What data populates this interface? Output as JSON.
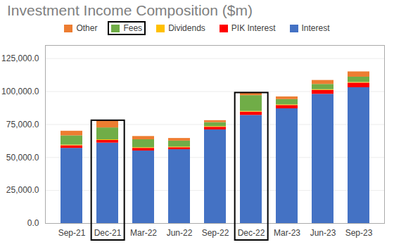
{
  "chart_data": {
    "type": "bar",
    "stacked": true,
    "title": "Investment Income Composition ($m)",
    "categories": [
      "Sep-21",
      "Dec-21",
      "Mar-22",
      "Jun-22",
      "Sep-22",
      "Dec-22",
      "Mar-23",
      "Jun-23",
      "Sep-23"
    ],
    "series": [
      {
        "name": "Interest",
        "color": "#4472C4",
        "values": [
          57000,
          61000,
          55000,
          56000,
          71000,
          82000,
          87000,
          98000,
          103000
        ]
      },
      {
        "name": "PIK Interest",
        "color": "#FF0000",
        "values": [
          2000,
          2000,
          2000,
          1500,
          2000,
          2500,
          2500,
          3000,
          3500
        ]
      },
      {
        "name": "Dividends",
        "color": "#FFC000",
        "values": [
          500,
          500,
          500,
          500,
          500,
          500,
          500,
          500,
          500
        ]
      },
      {
        "name": "Fees",
        "color": "#70AD47",
        "values": [
          7000,
          9000,
          6000,
          4500,
          3000,
          12000,
          4000,
          4000,
          4000
        ]
      },
      {
        "name": "Other",
        "color": "#ED7D31",
        "values": [
          3500,
          5500,
          2500,
          2000,
          1500,
          2000,
          2000,
          3000,
          4000
        ]
      }
    ],
    "legend_order": [
      "Other",
      "Fees",
      "Dividends",
      "PIK Interest",
      "Interest"
    ],
    "legend": "top",
    "boxed_bars": [
      "Dec-21",
      "Dec-22"
    ],
    "boxed_legend": [
      "Fees"
    ],
    "ylim": [
      0,
      135000
    ],
    "yticks": [
      {
        "value": 0,
        "label": "0.0"
      },
      {
        "value": 25000,
        "label": "25,000.0"
      },
      {
        "value": 50000,
        "label": "50,000.0"
      },
      {
        "value": 75000,
        "label": "75,000.0"
      },
      {
        "value": 100000,
        "label": "100,000.0"
      },
      {
        "value": 125000,
        "label": "125,000.0"
      }
    ],
    "grid": true
  }
}
